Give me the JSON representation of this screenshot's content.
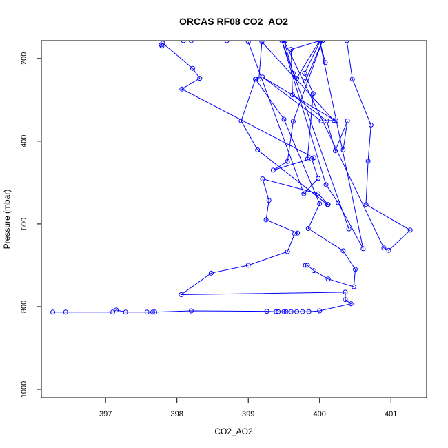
{
  "chart_data": {
    "type": "line",
    "title": "ORCAS RF08 CO2_AO2",
    "xlabel": "CO2_AO2",
    "ylabel": "Pressure (mbar)",
    "xlim": [
      396.1,
      401.5
    ],
    "ylim": [
      1020,
      157
    ],
    "y_reversed": true,
    "x_ticks": [
      397,
      398,
      399,
      400,
      401
    ],
    "y_ticks": [
      200,
      400,
      600,
      800,
      1000
    ],
    "grid": false,
    "legend": "none",
    "colors": {
      "series": "#0000ff",
      "axis": "#000000",
      "background": "#ffffff"
    },
    "series": [
      {
        "points": [
          [
            396.26,
            813
          ],
          [
            396.44,
            813
          ],
          [
            397.1,
            813
          ],
          [
            397.15,
            808
          ],
          [
            397.28,
            813
          ],
          [
            397.58,
            813
          ],
          [
            397.66,
            813
          ],
          [
            397.69,
            813
          ],
          [
            398.2,
            810
          ],
          [
            399.26,
            811
          ],
          [
            399.39,
            812
          ],
          [
            399.42,
            812
          ],
          [
            399.5,
            812
          ],
          [
            399.53,
            812
          ],
          [
            399.6,
            812
          ],
          [
            399.68,
            812
          ],
          [
            399.76,
            812
          ],
          [
            399.85,
            812
          ],
          [
            400.0,
            810
          ],
          [
            400.44,
            793
          ],
          [
            400.36,
            783
          ],
          [
            400.36,
            765
          ],
          [
            398.06,
            771
          ],
          [
            398.48,
            719
          ],
          [
            399.0,
            700
          ],
          [
            399.55,
            667
          ],
          [
            399.65,
            624
          ],
          [
            399.69,
            622
          ],
          [
            399.25,
            590
          ],
          [
            399.29,
            543
          ],
          [
            399.2,
            491
          ],
          [
            399.98,
            527
          ],
          [
            400.12,
            553
          ],
          [
            400.11,
            553
          ],
          [
            399.13,
            421
          ],
          [
            398.9,
            351
          ],
          [
            399.1,
            250
          ],
          [
            399.11,
            250
          ]
        ]
      },
      {
        "points": [
          [
            399.8,
            700
          ],
          [
            399.83,
            700
          ],
          [
            399.92,
            713
          ],
          [
            400.12,
            733
          ],
          [
            400.48,
            752
          ],
          [
            400.5,
            710
          ],
          [
            400.33,
            665
          ],
          [
            399.84,
            611
          ],
          [
            400.0,
            551
          ],
          [
            399.5,
            347
          ],
          [
            399.1,
            250
          ],
          [
            399.15,
            250
          ],
          [
            399.19,
            160
          ],
          [
            400.2,
            350
          ],
          [
            400.02,
            351
          ],
          [
            399.2,
            245
          ],
          [
            400.23,
            351
          ]
        ]
      },
      {
        "points": [
          [
            397.79,
            170
          ],
          [
            397.78,
            167
          ],
          [
            397.8,
            163
          ],
          [
            398.22,
            224
          ],
          [
            398.32,
            248
          ],
          [
            398.07,
            274
          ],
          [
            399.92,
            440
          ],
          [
            399.35,
            470
          ],
          [
            399.55,
            449
          ],
          [
            399.63,
            352
          ],
          [
            400.04,
            157
          ],
          [
            399.8,
            255
          ]
        ]
      },
      {
        "points": [
          [
            400.33,
            421
          ],
          [
            400.39,
            351
          ],
          [
            400.22,
            423
          ],
          [
            400.1,
            351
          ],
          [
            399.62,
            288
          ],
          [
            399.6,
            178
          ],
          [
            400.01,
            157
          ],
          [
            399.79,
            236
          ],
          [
            399.91,
            285
          ],
          [
            399.83,
            443
          ],
          [
            399.89,
            443
          ],
          [
            399.98,
            490
          ],
          [
            399.78,
            527
          ],
          [
            399.0,
            160
          ]
        ]
      },
      {
        "points": [
          [
            400.08,
            210
          ],
          [
            400.0,
            157
          ],
          [
            399.68,
            248
          ],
          [
            399.63,
            236
          ],
          [
            399.5,
            157
          ],
          [
            400.9,
            658
          ],
          [
            400.97,
            664
          ],
          [
            401.27,
            615
          ],
          [
            400.65,
            553
          ],
          [
            400.68,
            448
          ],
          [
            400.72,
            361
          ],
          [
            400.46,
            250
          ],
          [
            400.38,
            157
          ]
        ]
      },
      {
        "points": [
          [
            398.2,
            157
          ],
          [
            398.09,
            157
          ],
          [
            398.7,
            157
          ],
          [
            399.52,
            157
          ],
          [
            400.0,
            157
          ],
          [
            400.61,
            660
          ],
          [
            400.26,
            549
          ],
          [
            400.09,
            505
          ],
          [
            399.47,
            157
          ],
          [
            400.41,
            612
          ]
        ]
      }
    ]
  }
}
